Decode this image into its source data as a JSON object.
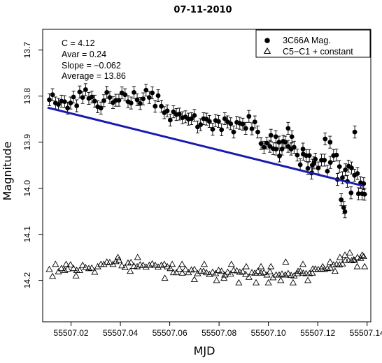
{
  "chart_data": {
    "type": "scatter",
    "title": "07-11-2010",
    "xlabel": "MJD",
    "ylabel": "Magnitude",
    "xlim": [
      55507.0085,
      55507.1415
    ],
    "ylim": [
      14.29,
      13.655
    ],
    "y_inverted": true,
    "x_ticks": [
      "55507.02",
      "55507.04",
      "55507.06",
      "55507.08",
      "55507.10",
      "55507.12",
      "55507.14"
    ],
    "x_tick_values": [
      55507.02,
      55507.04,
      55507.06,
      55507.08,
      55507.1,
      55507.12,
      55507.14
    ],
    "y_ticks": [
      "13.7",
      "13.8",
      "13.9",
      "14.0",
      "14.1",
      "14.2"
    ],
    "y_tick_values": [
      13.7,
      13.8,
      13.9,
      14.0,
      14.1,
      14.2
    ],
    "annotations": [
      "C = 4.12",
      "Avar = 0.24",
      "Slope = −0.062",
      "Average = 13.86"
    ],
    "legend_position": "top-right",
    "fit_line": {
      "color": "#1a1ab0",
      "x": [
        55507.0105,
        55507.1385
      ],
      "y": [
        13.825,
        13.995
      ]
    },
    "series": [
      {
        "name": "3C66A Mag.",
        "marker": "filled-circle",
        "error_bar": 0.013,
        "points": [
          [
            55507.0112,
            13.808
          ],
          [
            55507.0125,
            13.797
          ],
          [
            55507.0137,
            13.815
          ],
          [
            55507.0149,
            13.818
          ],
          [
            55507.0161,
            13.811
          ],
          [
            55507.0174,
            13.812
          ],
          [
            55507.0186,
            13.826
          ],
          [
            55507.0198,
            13.815
          ],
          [
            55507.021,
            13.802
          ],
          [
            55507.0223,
            13.821
          ],
          [
            55507.0235,
            13.791
          ],
          [
            55507.0247,
            13.803
          ],
          [
            55507.0259,
            13.786
          ],
          [
            55507.0272,
            13.805
          ],
          [
            55507.0284,
            13.802
          ],
          [
            55507.0296,
            13.811
          ],
          [
            55507.0308,
            13.823
          ],
          [
            55507.0321,
            13.826
          ],
          [
            55507.0333,
            13.81
          ],
          [
            55507.0345,
            13.792
          ],
          [
            55507.0357,
            13.803
          ],
          [
            55507.037,
            13.814
          ],
          [
            55507.0382,
            13.809
          ],
          [
            55507.0394,
            13.809
          ],
          [
            55507.0406,
            13.793
          ],
          [
            55507.0419,
            13.797
          ],
          [
            55507.0431,
            13.812
          ],
          [
            55507.0443,
            13.815
          ],
          [
            55507.0455,
            13.792
          ],
          [
            55507.0468,
            13.808
          ],
          [
            55507.048,
            13.816
          ],
          [
            55507.0492,
            13.806
          ],
          [
            55507.0504,
            13.787
          ],
          [
            55507.0517,
            13.803
          ],
          [
            55507.0529,
            13.793
          ],
          [
            55507.0541,
            13.822
          ],
          [
            55507.0553,
            13.799
          ],
          [
            55507.0566,
            13.822
          ],
          [
            55507.0578,
            13.836
          ],
          [
            55507.059,
            13.832
          ],
          [
            55507.0602,
            13.852
          ],
          [
            55507.0615,
            13.834
          ],
          [
            55507.0627,
            13.84
          ],
          [
            55507.0639,
            13.839
          ],
          [
            55507.0651,
            13.847
          ],
          [
            55507.0664,
            13.845
          ],
          [
            55507.0676,
            13.85
          ],
          [
            55507.0688,
            13.849
          ],
          [
            55507.07,
            13.842
          ],
          [
            55507.0713,
            13.867
          ],
          [
            55507.0725,
            13.862
          ],
          [
            55507.0737,
            13.849
          ],
          [
            55507.0749,
            13.85
          ],
          [
            55507.0761,
            13.855
          ],
          [
            55507.0774,
            13.872
          ],
          [
            55507.0786,
            13.853
          ],
          [
            55507.0798,
            13.855
          ],
          [
            55507.081,
            13.873
          ],
          [
            55507.0823,
            13.849
          ],
          [
            55507.0835,
            13.856
          ],
          [
            55507.0847,
            13.86
          ],
          [
            55507.0859,
            13.878
          ],
          [
            55507.0872,
            13.857
          ],
          [
            55507.0884,
            13.859
          ],
          [
            55507.0896,
            13.861
          ],
          [
            55507.0908,
            13.87
          ],
          [
            55507.0921,
            13.844
          ],
          [
            55507.0933,
            13.871
          ],
          [
            55507.0945,
            13.856
          ],
          [
            55507.0957,
            13.878
          ],
          [
            55507.097,
            13.903
          ],
          [
            55507.0982,
            13.911
          ],
          [
            55507.0994,
            13.902
          ],
          [
            55507.1006,
            13.909
          ],
          [
            55507.1019,
            13.914
          ],
          [
            55507.1031,
            13.915
          ],
          [
            55507.1043,
            13.9
          ],
          [
            55507.1055,
            13.915
          ],
          [
            55507.1068,
            13.9
          ],
          [
            55507.108,
            13.909
          ],
          [
            55507.1092,
            13.915
          ],
          [
            55507.1104,
            13.911
          ],
          [
            55507.1117,
            13.928
          ],
          [
            55507.1129,
            13.949
          ],
          [
            55507.1141,
            13.926
          ],
          [
            55507.1153,
            13.929
          ],
          [
            55507.1166,
            13.929
          ],
          [
            55507.1178,
            13.95
          ],
          [
            55507.119,
            13.937
          ],
          [
            55507.1202,
            13.956
          ],
          [
            55507.1215,
            13.939
          ],
          [
            55507.1227,
            13.939
          ],
          [
            55507.1239,
            13.963
          ],
          [
            55507.1251,
            13.944
          ],
          [
            55507.1264,
            13.929
          ],
          [
            55507.1276,
            13.928
          ],
          [
            55507.1288,
            13.953
          ],
          [
            55507.13,
            13.977
          ],
          [
            55507.1312,
            13.96
          ],
          [
            55507.1325,
            13.952
          ],
          [
            55507.1337,
            13.956
          ],
          [
            55507.1349,
            13.972
          ],
          [
            55507.1361,
            13.968
          ],
          [
            55507.1374,
            13.988
          ],
          [
            55507.1386,
            13.99
          ],
          [
            55507.139,
            14.013
          ],
          [
            55507.101,
            13.885
          ],
          [
            55507.103,
            13.888
          ],
          [
            55507.1045,
            13.93
          ],
          [
            55507.106,
            13.898
          ],
          [
            55507.108,
            13.87
          ],
          [
            55507.1095,
            13.888
          ],
          [
            55507.114,
            13.915
          ],
          [
            55507.116,
            13.957
          ],
          [
            55507.1175,
            13.967
          ],
          [
            55507.1185,
            13.945
          ],
          [
            55507.123,
            13.893
          ],
          [
            55507.125,
            13.9
          ],
          [
            55507.128,
            13.981
          ],
          [
            55507.1295,
            14.025
          ],
          [
            55507.1305,
            14.042
          ],
          [
            55507.131,
            14.051
          ],
          [
            55507.132,
            13.985
          ],
          [
            55507.1335,
            14.01
          ],
          [
            55507.135,
            13.878
          ],
          [
            55507.1365,
            14.012
          ],
          [
            55507.138,
            14.012
          ]
        ]
      },
      {
        "name": "C5−C1 + constant",
        "marker": "open-triangle",
        "points": [
          [
            55507.0112,
            14.176
          ],
          [
            55507.0125,
            14.191
          ],
          [
            55507.0137,
            14.165
          ],
          [
            55507.0149,
            14.181
          ],
          [
            55507.0161,
            14.174
          ],
          [
            55507.0174,
            14.178
          ],
          [
            55507.0186,
            14.175
          ],
          [
            55507.0198,
            14.166
          ],
          [
            55507.021,
            14.174
          ],
          [
            55507.0223,
            14.178
          ],
          [
            55507.0235,
            14.178
          ],
          [
            55507.0247,
            14.167
          ],
          [
            55507.0259,
            14.172
          ],
          [
            55507.0272,
            14.174
          ],
          [
            55507.0284,
            14.173
          ],
          [
            55507.0296,
            14.182
          ],
          [
            55507.0308,
            14.17
          ],
          [
            55507.0321,
            14.165
          ],
          [
            55507.0333,
            14.165
          ],
          [
            55507.0345,
            14.16
          ],
          [
            55507.0357,
            14.161
          ],
          [
            55507.037,
            14.165
          ],
          [
            55507.0382,
            14.159
          ],
          [
            55507.0394,
            14.156
          ],
          [
            55507.0406,
            14.168
          ],
          [
            55507.0419,
            14.172
          ],
          [
            55507.0431,
            14.162
          ],
          [
            55507.0443,
            14.161
          ],
          [
            55507.0455,
            14.169
          ],
          [
            55507.0468,
            14.17
          ],
          [
            55507.048,
            14.166
          ],
          [
            55507.0492,
            14.167
          ],
          [
            55507.0504,
            14.171
          ],
          [
            55507.0517,
            14.167
          ],
          [
            55507.0529,
            14.164
          ],
          [
            55507.0541,
            14.167
          ],
          [
            55507.0553,
            14.171
          ],
          [
            55507.0566,
            14.167
          ],
          [
            55507.0578,
            14.165
          ],
          [
            55507.059,
            14.17
          ],
          [
            55507.0602,
            14.174
          ],
          [
            55507.0615,
            14.183
          ],
          [
            55507.0627,
            14.183
          ],
          [
            55507.0639,
            14.175
          ],
          [
            55507.0651,
            14.184
          ],
          [
            55507.0664,
            14.176
          ],
          [
            55507.0676,
            14.183
          ],
          [
            55507.0688,
            14.177
          ],
          [
            55507.07,
            14.176
          ],
          [
            55507.0713,
            14.185
          ],
          [
            55507.0725,
            14.18
          ],
          [
            55507.0737,
            14.18
          ],
          [
            55507.0749,
            14.183
          ],
          [
            55507.0761,
            14.187
          ],
          [
            55507.0774,
            14.182
          ],
          [
            55507.0786,
            14.185
          ],
          [
            55507.0798,
            14.178
          ],
          [
            55507.081,
            14.18
          ],
          [
            55507.0823,
            14.188
          ],
          [
            55507.0835,
            14.182
          ],
          [
            55507.0847,
            14.186
          ],
          [
            55507.0859,
            14.178
          ],
          [
            55507.0872,
            14.179
          ],
          [
            55507.0884,
            14.182
          ],
          [
            55507.0896,
            14.181
          ],
          [
            55507.0908,
            14.187
          ],
          [
            55507.0921,
            14.193
          ],
          [
            55507.0933,
            14.183
          ],
          [
            55507.0945,
            14.184
          ],
          [
            55507.0957,
            14.18
          ],
          [
            55507.097,
            14.184
          ],
          [
            55507.0982,
            14.183
          ],
          [
            55507.0994,
            14.188
          ],
          [
            55507.1006,
            14.181
          ],
          [
            55507.1019,
            14.194
          ],
          [
            55507.1031,
            14.188
          ],
          [
            55507.1043,
            14.188
          ],
          [
            55507.1055,
            14.186
          ],
          [
            55507.1068,
            14.188
          ],
          [
            55507.108,
            14.185
          ],
          [
            55507.1092,
            14.189
          ],
          [
            55507.1104,
            14.19
          ],
          [
            55507.1117,
            14.185
          ],
          [
            55507.1129,
            14.18
          ],
          [
            55507.1141,
            14.184
          ],
          [
            55507.1153,
            14.185
          ],
          [
            55507.1166,
            14.185
          ],
          [
            55507.1178,
            14.184
          ],
          [
            55507.119,
            14.175
          ],
          [
            55507.1202,
            14.176
          ],
          [
            55507.1215,
            14.175
          ],
          [
            55507.1227,
            14.176
          ],
          [
            55507.1239,
            14.174
          ],
          [
            55507.1251,
            14.173
          ],
          [
            55507.1264,
            14.166
          ],
          [
            55507.1276,
            14.165
          ],
          [
            55507.1288,
            14.166
          ],
          [
            55507.13,
            14.164
          ],
          [
            55507.1312,
            14.157
          ],
          [
            55507.1325,
            14.157
          ],
          [
            55507.1337,
            14.157
          ],
          [
            55507.1349,
            14.156
          ],
          [
            55507.1361,
            14.15
          ],
          [
            55507.1374,
            14.152
          ],
          [
            55507.1386,
            14.148
          ],
          [
            55507.018,
            14.165
          ],
          [
            55507.022,
            14.19
          ],
          [
            55507.039,
            14.15
          ],
          [
            55507.044,
            14.18
          ],
          [
            55507.047,
            14.15
          ],
          [
            55507.058,
            14.195
          ],
          [
            55507.061,
            14.165
          ],
          [
            55507.065,
            14.165
          ],
          [
            55507.07,
            14.198
          ],
          [
            55507.074,
            14.165
          ],
          [
            55507.079,
            14.2
          ],
          [
            55507.082,
            14.195
          ],
          [
            55507.085,
            14.165
          ],
          [
            55507.088,
            14.205
          ],
          [
            55507.091,
            14.17
          ],
          [
            55507.095,
            14.205
          ],
          [
            55507.097,
            14.17
          ],
          [
            55507.1,
            14.205
          ],
          [
            55507.101,
            14.17
          ],
          [
            55507.105,
            14.2
          ],
          [
            55507.107,
            14.16
          ],
          [
            55507.11,
            14.205
          ],
          [
            55507.112,
            14.18
          ],
          [
            55507.114,
            14.165
          ],
          [
            55507.116,
            14.2
          ],
          [
            55507.118,
            14.175
          ],
          [
            55507.122,
            14.17
          ],
          [
            55507.125,
            14.16
          ],
          [
            55507.127,
            14.18
          ],
          [
            55507.129,
            14.15
          ],
          [
            55507.131,
            14.145
          ],
          [
            55507.133,
            14.14
          ],
          [
            55507.1345,
            14.155
          ],
          [
            55507.136,
            14.17
          ],
          [
            55507.138,
            14.145
          ],
          [
            55507.139,
            14.17
          ]
        ]
      }
    ]
  }
}
